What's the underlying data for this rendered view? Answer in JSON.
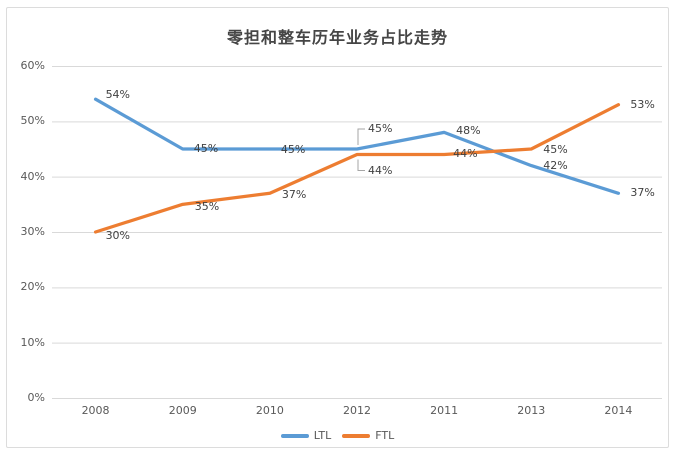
{
  "chart_data": {
    "type": "line",
    "title": "零担和整车历年业务占比走势",
    "categories": [
      "2008",
      "2009",
      "2010",
      "2012",
      "2011",
      "2013",
      "2014"
    ],
    "series": [
      {
        "name": "LTL",
        "color": "#5B9BD5",
        "values": [
          54,
          45,
          45,
          45,
          48,
          42,
          37
        ]
      },
      {
        "name": "FTL",
        "color": "#ED7D31",
        "values": [
          30,
          35,
          37,
          44,
          44,
          45,
          53
        ]
      }
    ],
    "ylim": [
      0,
      60
    ],
    "ytick_labels": [
      "0%",
      "10%",
      "20%",
      "30%",
      "40%",
      "50%",
      "60%"
    ],
    "ytick_values": [
      0,
      10,
      20,
      30,
      40,
      50,
      60
    ],
    "label_format": "{v}%",
    "grid": true,
    "legend_position": "bottom",
    "data_labels": true
  },
  "palette": {
    "background": "#ffffff",
    "card_border": "#dcdcdc",
    "gridline": "#d9d9d9",
    "axis_text": "#595959",
    "data_label_text": "#404040",
    "title_text": "#454545",
    "callout_line": "#a6a6a6"
  }
}
